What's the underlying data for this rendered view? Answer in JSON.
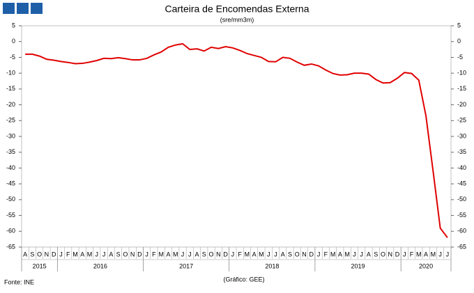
{
  "header": {
    "title": "Carteira de Encomendas Externa",
    "subtitle": "(sre/mm3m)"
  },
  "chart_data": {
    "type": "line",
    "groups": [
      {
        "label": "2015",
        "categories": [
          "A",
          "S",
          "O",
          "N",
          "D"
        ]
      },
      {
        "label": "2016",
        "categories": [
          "J",
          "F",
          "M",
          "A",
          "M",
          "J",
          "J",
          "A",
          "S",
          "O",
          "N",
          "D"
        ]
      },
      {
        "label": "2017",
        "categories": [
          "J",
          "F",
          "M",
          "A",
          "M",
          "J",
          "J",
          "A",
          "S",
          "O",
          "N",
          "D"
        ]
      },
      {
        "label": "2018",
        "categories": [
          "J",
          "F",
          "M",
          "A",
          "M",
          "J",
          "J",
          "A",
          "S",
          "O",
          "N",
          "D"
        ]
      },
      {
        "label": "2019",
        "categories": [
          "J",
          "F",
          "M",
          "A",
          "M",
          "J",
          "J",
          "A",
          "S",
          "O",
          "N",
          "D"
        ]
      },
      {
        "label": "2020",
        "categories": [
          "J",
          "F",
          "M",
          "A",
          "M",
          "J",
          "J"
        ]
      }
    ],
    "series": [
      {
        "color": "#e00000",
        "values": [
          -4,
          -4,
          -4.6,
          -5.6,
          -5.9,
          -6.3,
          -6.6,
          -7,
          -6.9,
          -6.5,
          -6,
          -5.3,
          -5.4,
          -5.1,
          -5.4,
          -5.8,
          -5.8,
          -5.3,
          -4.2,
          -3.3,
          -1.8,
          -1.1,
          -0.7,
          -2.5,
          -2.3,
          -3.0,
          -1.8,
          -2.2,
          -1.6,
          -2.0,
          -2.8,
          -3.8,
          -4.4,
          -5.0,
          -6.3,
          -6.4,
          -5.0,
          -5.3,
          -6.5,
          -7.5,
          -7.1,
          -7.7,
          -9.0,
          -10.1,
          -10.6,
          -10.5,
          -10.0,
          -10.0,
          -10.3,
          -12.0,
          -13.1,
          -13.0,
          -11.6,
          -9.8,
          -10.1,
          -12.2,
          -23.5,
          -41,
          -59,
          -62
        ]
      }
    ],
    "ylim": [
      -65,
      5
    ],
    "yticks": [
      5,
      0,
      -5,
      -10,
      -15,
      -20,
      -25,
      -30,
      -35,
      -40,
      -45,
      -50,
      -55,
      -60,
      -65
    ]
  },
  "footer": {
    "source": "Fonte: INE",
    "credit": "(Gráfico: GEE)"
  }
}
